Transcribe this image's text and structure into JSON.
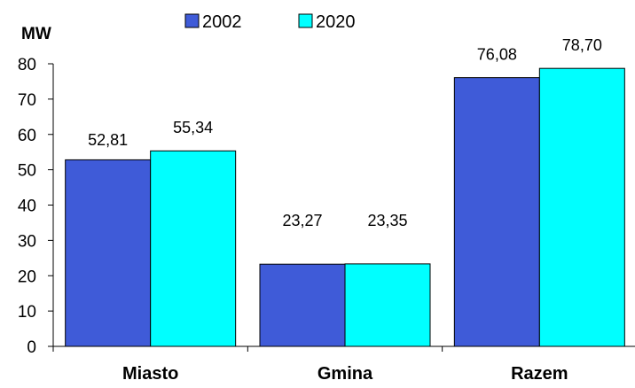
{
  "chart_data": {
    "type": "bar",
    "title": "",
    "ylabel": "MW",
    "xlabel": "",
    "categories": [
      "Miasto",
      "Gmina",
      "Razem"
    ],
    "series": [
      {
        "name": "2002",
        "values": [
          52.81,
          23.27,
          76.08
        ],
        "labels": [
          "52,81",
          "23,27",
          "76,08"
        ],
        "color": "#3f5bd8"
      },
      {
        "name": "2020",
        "values": [
          55.34,
          23.35,
          78.7
        ],
        "labels": [
          "55,34",
          "23,35",
          "78,70"
        ],
        "color": "#00ffff"
      }
    ],
    "ylim": [
      0,
      80
    ],
    "yticks": [
      "0",
      "10",
      "20",
      "30",
      "40",
      "50",
      "60",
      "70",
      "80"
    ],
    "grid": false,
    "legend_position": "top"
  }
}
